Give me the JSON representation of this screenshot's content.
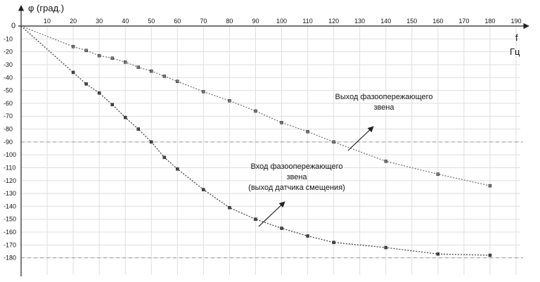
{
  "chart_data": {
    "type": "line",
    "ylabel": "φ (град.)",
    "xlabel_top": "f",
    "xlabel_bottom": "Гц",
    "zero_label": "0",
    "xlim": [
      0,
      190
    ],
    "ylim": [
      -190,
      0
    ],
    "x_ticks": [
      10,
      20,
      30,
      40,
      50,
      60,
      70,
      80,
      90,
      100,
      110,
      120,
      130,
      140,
      150,
      160,
      170,
      180,
      190
    ],
    "y_ticks": [
      -10,
      -20,
      -30,
      -40,
      -50,
      -60,
      -70,
      -80,
      -90,
      -100,
      -110,
      -120,
      -130,
      -140,
      -150,
      -160,
      -170,
      -180
    ],
    "grid": true,
    "reference_lines": [
      -90,
      -180
    ],
    "series": [
      {
        "name": "Выход фазоопережающего звена",
        "color": "#777777",
        "x": [
          0,
          20,
          25,
          30,
          35,
          40,
          45,
          50,
          55,
          60,
          70,
          80,
          90,
          100,
          110,
          120,
          140,
          160,
          180
        ],
        "y": [
          0,
          -16,
          -19,
          -23,
          -25,
          -28,
          -32,
          -35,
          -39,
          -43,
          -51,
          -58,
          -66,
          -75,
          -82,
          -90,
          -105,
          -115,
          -124
        ]
      },
      {
        "name": "Вход фазоопережающего звена (выход датчика смещения)",
        "color": "#444444",
        "x": [
          0,
          20,
          25,
          30,
          35,
          40,
          45,
          50,
          55,
          60,
          70,
          80,
          90,
          100,
          110,
          120,
          140,
          160,
          180
        ],
        "y": [
          0,
          -36,
          -45,
          -52,
          -61,
          -71,
          -80,
          -90,
          -102,
          -111,
          -127,
          -141,
          -150,
          -157,
          -163,
          -168,
          -172,
          -177,
          -178
        ]
      }
    ],
    "annotations": [
      {
        "lines": [
          "Выход фазоопережающего",
          "звена"
        ]
      },
      {
        "lines": [
          "Вход фазоопережающего",
          "звена",
          "(выход датчика смещения)"
        ]
      }
    ]
  }
}
